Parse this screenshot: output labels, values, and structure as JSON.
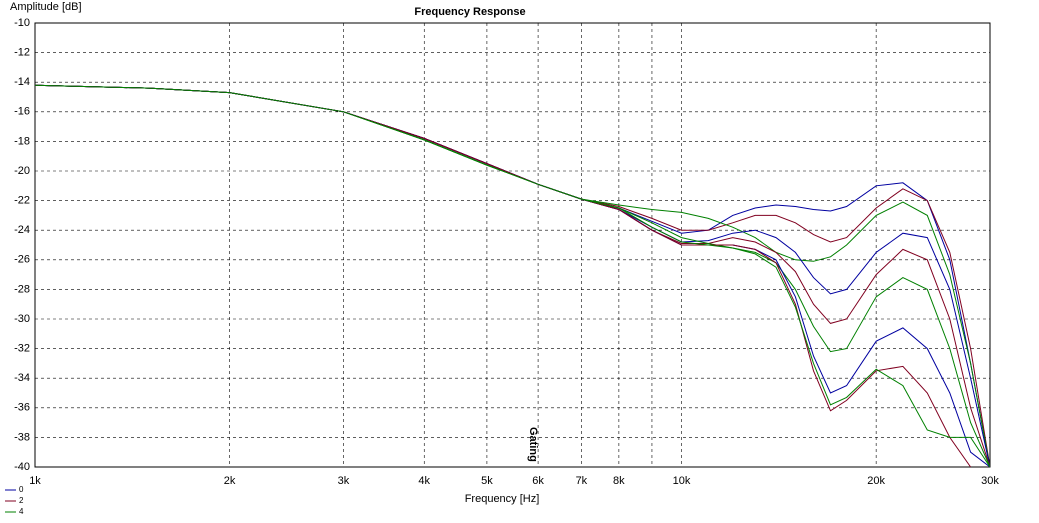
{
  "chart_data": {
    "type": "line",
    "title": "Frequency Response",
    "y_label": "Amplitude [dB]",
    "x_label": "Frequency [Hz]",
    "x_log_scale": true,
    "grid": true,
    "legend": "bottom-left",
    "xlim": [
      1000,
      30000
    ],
    "ylim": [
      -40,
      -10
    ],
    "xticks": [
      {
        "value": 1000,
        "label": "1k"
      },
      {
        "value": 2000,
        "label": "2k"
      },
      {
        "value": 3000,
        "label": "3k"
      },
      {
        "value": 4000,
        "label": "4k"
      },
      {
        "value": 5000,
        "label": "5k"
      },
      {
        "value": 6000,
        "label": "6k"
      },
      {
        "value": 7000,
        "label": "7k"
      },
      {
        "value": 8000,
        "label": "8k"
      },
      {
        "value": 10000,
        "label": "10k"
      },
      {
        "value": 20000,
        "label": "20k"
      },
      {
        "value": 30000,
        "label": "30k"
      }
    ],
    "x_minor_gridlines": [
      9000
    ],
    "yticks": [
      -10,
      -12,
      -14,
      -16,
      -18,
      -20,
      -22,
      -24,
      -26,
      -28,
      -30,
      -32,
      -34,
      -36,
      -38,
      -40
    ],
    "annotation": {
      "text": "Gating",
      "x": 6000
    },
    "x": [
      1000,
      1500,
      2000,
      3000,
      4000,
      5000,
      6000,
      7000,
      8000,
      9000,
      10000,
      11000,
      12000,
      13000,
      14000,
      15000,
      16000,
      17000,
      18000,
      20000,
      22000,
      24000,
      26000,
      28000,
      30000
    ],
    "series": [
      {
        "name": "0",
        "color": "#0000a0",
        "values": [
          -14.2,
          -14.4,
          -14.7,
          -16.0,
          -17.8,
          -19.5,
          -20.9,
          -21.9,
          -22.5,
          -23.4,
          -24.2,
          -24.0,
          -23.0,
          -22.5,
          -22.3,
          -22.4,
          -22.6,
          -22.7,
          -22.4,
          -21.0,
          -20.8,
          -22.0,
          -26.0,
          -33.0,
          -40.0
        ]
      },
      {
        "name": "2",
        "color": "#800020",
        "values": [
          -14.2,
          -14.4,
          -14.7,
          -16.0,
          -17.8,
          -19.5,
          -20.9,
          -21.9,
          -22.4,
          -23.2,
          -24.0,
          -24.0,
          -23.5,
          -23.0,
          -23.0,
          -23.5,
          -24.3,
          -24.8,
          -24.5,
          -22.5,
          -21.2,
          -22.0,
          -25.5,
          -32.0,
          -40.0
        ]
      },
      {
        "name": "4",
        "color": "#008000",
        "values": [
          -14.2,
          -14.4,
          -14.7,
          -16.0,
          -17.9,
          -19.6,
          -20.9,
          -21.9,
          -22.3,
          -22.6,
          -22.8,
          -23.2,
          -23.8,
          -24.5,
          -25.5,
          -26.0,
          -26.1,
          -25.8,
          -25.0,
          -23.0,
          -22.1,
          -23.0,
          -27.0,
          -33.0,
          -40.0
        ]
      },
      {
        "color": "#0000a0",
        "values": [
          -14.2,
          -14.4,
          -14.7,
          -16.0,
          -17.8,
          -19.5,
          -20.9,
          -21.9,
          -22.6,
          -23.8,
          -24.8,
          -24.7,
          -24.2,
          -24.0,
          -24.5,
          -25.5,
          -27.2,
          -28.3,
          -28.0,
          -25.5,
          -24.2,
          -24.5,
          -28.0,
          -34.0,
          -40.0
        ]
      },
      {
        "color": "#800020",
        "values": [
          -14.2,
          -14.4,
          -14.7,
          -16.0,
          -17.8,
          -19.5,
          -20.9,
          -21.9,
          -22.6,
          -24.0,
          -24.9,
          -24.9,
          -24.5,
          -24.8,
          -25.5,
          -26.8,
          -29.0,
          -30.3,
          -30.0,
          -27.0,
          -25.3,
          -26.0,
          -30.0,
          -36.0,
          -40.0
        ]
      },
      {
        "color": "#008000",
        "values": [
          -14.2,
          -14.4,
          -14.7,
          -16.0,
          -17.9,
          -19.6,
          -20.9,
          -21.9,
          -22.5,
          -23.5,
          -24.5,
          -24.9,
          -25.2,
          -25.5,
          -26.2,
          -28.0,
          -30.5,
          -32.2,
          -32.0,
          -28.5,
          -27.2,
          -28.0,
          -32.0,
          -37.0,
          -40.0
        ]
      },
      {
        "color": "#0000a0",
        "values": [
          -14.2,
          -14.4,
          -14.7,
          -16.0,
          -17.8,
          -19.5,
          -20.9,
          -21.9,
          -22.6,
          -24.0,
          -25.0,
          -25.0,
          -25.0,
          -25.3,
          -26.0,
          -28.5,
          -32.5,
          -35.0,
          -34.5,
          -31.5,
          -30.6,
          -32.0,
          -35.0,
          -39.0,
          -40.0
        ]
      },
      {
        "color": "#800020",
        "values": [
          -14.2,
          -14.4,
          -14.7,
          -16.0,
          -17.8,
          -19.5,
          -20.9,
          -21.9,
          -22.6,
          -24.0,
          -25.0,
          -25.0,
          -25.0,
          -25.3,
          -26.2,
          -29.0,
          -33.5,
          -36.2,
          -35.5,
          -33.5,
          -33.2,
          -35.0,
          -38.0,
          -40.0,
          null
        ]
      },
      {
        "color": "#008000",
        "values": [
          -14.2,
          -14.4,
          -14.7,
          -16.0,
          -17.9,
          -19.6,
          -20.9,
          -21.9,
          -22.5,
          -23.8,
          -24.8,
          -25.0,
          -25.2,
          -25.6,
          -26.5,
          -29.2,
          -33.0,
          -35.8,
          -35.3,
          -33.4,
          -34.5,
          -37.5,
          -38.0,
          -38.0,
          -40.0
        ]
      }
    ]
  }
}
